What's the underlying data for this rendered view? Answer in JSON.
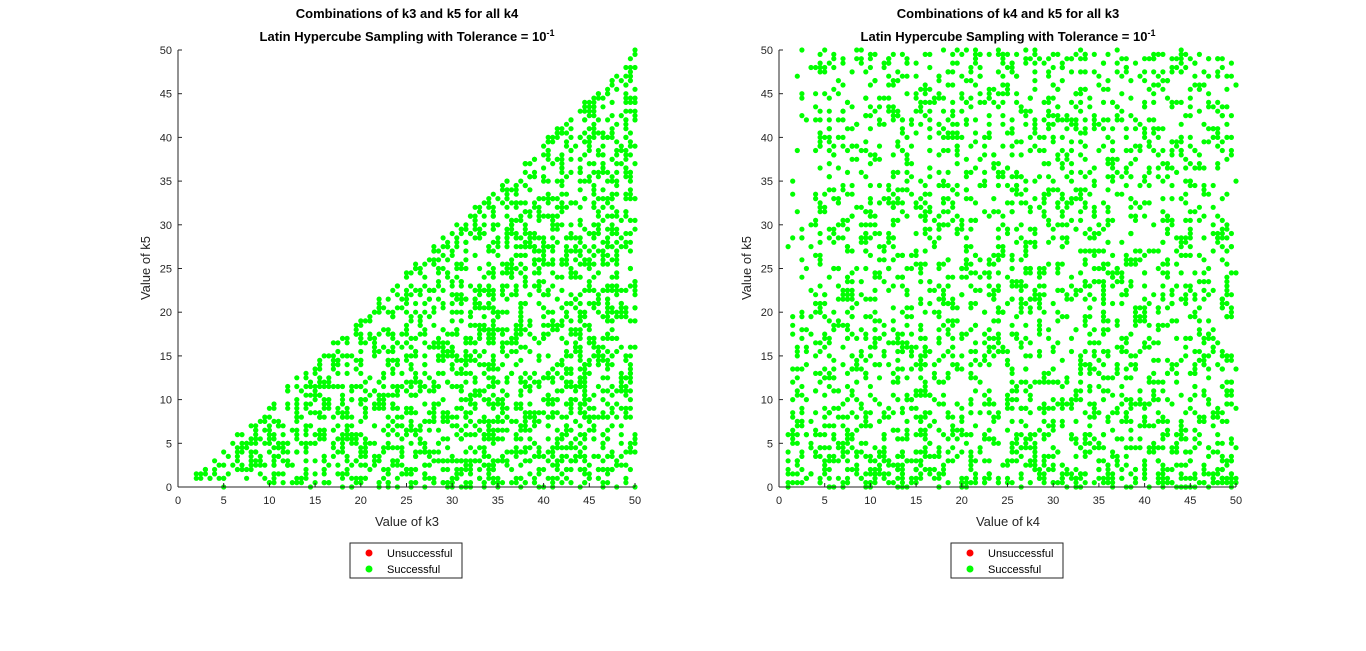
{
  "chart_data": [
    {
      "type": "scatter",
      "title": "Combinations of k3 and k5 for all k4",
      "subtitle": "Latin Hypercube Sampling with Tolerance = 10",
      "subtitle_exponent": "-1",
      "xlabel": "Value of k3",
      "ylabel": "Value of k5",
      "xlim": [
        0,
        50
      ],
      "ylim": [
        0,
        50
      ],
      "xticks": [
        "0",
        "5",
        "10",
        "15",
        "20",
        "25",
        "30",
        "35",
        "40",
        "45",
        "50"
      ],
      "yticks": [
        "0",
        "5",
        "10",
        "15",
        "20",
        "25",
        "30",
        "35",
        "40",
        "45",
        "50"
      ],
      "grid": false,
      "legend_position": "below",
      "region": "k5 <= k3 (points fill triangle below diagonal)",
      "series": [
        {
          "name": "Unsuccessful",
          "color": "#ff0000",
          "points": []
        },
        {
          "name": "Successful",
          "color": "#00ff00",
          "points": [
            [
              2,
              1.5
            ],
            [
              3,
              2
            ],
            [
              4,
              3
            ],
            [
              5,
              4
            ],
            [
              6,
              5
            ],
            [
              7,
              6
            ],
            [
              8,
              7
            ],
            [
              10,
              9
            ],
            [
              12,
              11
            ],
            [
              14,
              13
            ],
            [
              16,
              15
            ],
            [
              18,
              17
            ],
            [
              20,
              19
            ],
            [
              22,
              21
            ],
            [
              24,
              23
            ],
            [
              26,
              25
            ],
            [
              28,
              27
            ],
            [
              30,
              29
            ],
            [
              32,
              31
            ],
            [
              34,
              33
            ],
            [
              36,
              35
            ],
            [
              38,
              37
            ],
            [
              40,
              39
            ],
            [
              42,
              41
            ],
            [
              44,
              43
            ],
            [
              46,
              45
            ],
            [
              48,
              47
            ],
            [
              49,
              48
            ],
            [
              5,
              1
            ],
            [
              8,
              2
            ],
            [
              10,
              4
            ],
            [
              12,
              3
            ],
            [
              15,
              5
            ],
            [
              18,
              8
            ],
            [
              20,
              6
            ],
            [
              22,
              10
            ],
            [
              25,
              12
            ],
            [
              28,
              9
            ],
            [
              30,
              15
            ],
            [
              33,
              18
            ],
            [
              35,
              20
            ],
            [
              38,
              25
            ],
            [
              40,
              22
            ],
            [
              42,
              30
            ],
            [
              45,
              35
            ],
            [
              47,
              40
            ],
            [
              49,
              45
            ],
            [
              50,
              50
            ],
            [
              14,
              1
            ],
            [
              20,
              1
            ],
            [
              26,
              2
            ],
            [
              32,
              3
            ],
            [
              38,
              4
            ],
            [
              44,
              5
            ],
            [
              50,
              6
            ],
            [
              35,
              10
            ],
            [
              42,
              14
            ],
            [
              48,
              20
            ],
            [
              30,
              22
            ],
            [
              36,
              28
            ],
            [
              44,
              32
            ],
            [
              40,
              38
            ],
            [
              46,
              42
            ],
            [
              25,
              18
            ],
            [
              20,
              14
            ],
            [
              16,
              10
            ],
            [
              11,
              7
            ],
            [
              27,
              5
            ]
          ]
        }
      ]
    },
    {
      "type": "scatter",
      "title": "Combinations of k4 and k5 for all k3",
      "subtitle": "Latin Hypercube Sampling with Tolerance = 10",
      "subtitle_exponent": "-1",
      "xlabel": "Value of k4",
      "ylabel": "Value of k5",
      "xlim": [
        0,
        50
      ],
      "ylim": [
        0,
        50
      ],
      "xticks": [
        "0",
        "5",
        "10",
        "15",
        "20",
        "25",
        "30",
        "35",
        "40",
        "45",
        "50"
      ],
      "yticks": [
        "0",
        "5",
        "10",
        "15",
        "20",
        "25",
        "30",
        "35",
        "40",
        "45",
        "50"
      ],
      "grid": false,
      "legend_position": "below",
      "region": "k4 >= ~1, all k5 (points fill full square, denser at low k5)",
      "series": [
        {
          "name": "Unsuccessful",
          "color": "#ff0000",
          "points": []
        },
        {
          "name": "Successful",
          "color": "#00ff00",
          "points": [
            [
              1,
              3
            ],
            [
              1,
              6
            ],
            [
              2,
              7
            ],
            [
              3,
              10
            ],
            [
              3,
              14
            ],
            [
              4,
              20
            ],
            [
              4,
              30
            ],
            [
              4,
              45
            ],
            [
              5,
              48
            ],
            [
              6,
              38
            ],
            [
              8,
              41
            ],
            [
              10,
              46
            ],
            [
              12,
              49
            ],
            [
              15,
              47
            ],
            [
              18,
              50
            ],
            [
              22,
              48
            ],
            [
              27,
              50
            ],
            [
              32,
              49
            ],
            [
              38,
              48
            ],
            [
              44,
              50
            ],
            [
              48,
              49
            ],
            [
              50,
              46
            ],
            [
              5,
              2
            ],
            [
              10,
              3
            ],
            [
              15,
              2
            ],
            [
              20,
              1
            ],
            [
              25,
              3
            ],
            [
              30,
              2
            ],
            [
              35,
              1
            ],
            [
              40,
              2
            ],
            [
              45,
              3
            ],
            [
              50,
              1
            ],
            [
              12,
              25
            ],
            [
              18,
              30
            ],
            [
              24,
              20
            ],
            [
              30,
              35
            ],
            [
              36,
              15
            ],
            [
              42,
              28
            ],
            [
              48,
              40
            ],
            [
              20,
              40
            ],
            [
              28,
              12
            ],
            [
              34,
              22
            ],
            [
              40,
              8
            ],
            [
              46,
              18
            ],
            [
              8,
              15
            ],
            [
              14,
              10
            ],
            [
              26,
              5
            ]
          ]
        }
      ]
    }
  ]
}
